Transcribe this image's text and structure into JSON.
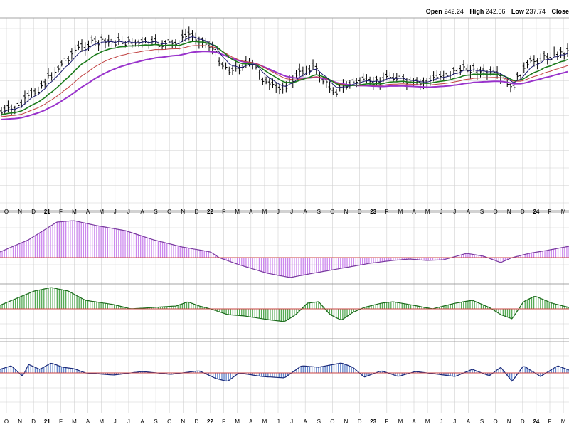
{
  "header": {
    "open_label": "Open",
    "open_value": "242.24",
    "high_label": "High",
    "high_value": "242.66",
    "low_label": "Low",
    "low_value": "237.74",
    "close_label": "Close"
  },
  "colors": {
    "grid": "#d0d0d0",
    "bars": "#000000",
    "ema_fast": "#1a1a6e",
    "ema_green": "#1a7a1a",
    "ema_red": "#c04040",
    "ema_purple": "#9933cc",
    "hist1_fill": "#cc88ee",
    "hist1_stroke": "#7a3aa0",
    "hist2_fill": "#55aa55",
    "hist2_stroke": "#1a6a1a",
    "hist3_fill": "#6688cc",
    "hist3_stroke": "#1a2a7a",
    "zero_line": "#cc4444"
  },
  "chart_data": {
    "type": "line",
    "x_ticks": [
      "O",
      "N",
      "D",
      "21",
      "F",
      "M",
      "A",
      "M",
      "J",
      "J",
      "A",
      "S",
      "O",
      "N",
      "D",
      "22",
      "F",
      "M",
      "A",
      "M",
      "J",
      "J",
      "A",
      "S",
      "O",
      "N",
      "D",
      "23",
      "F",
      "M",
      "A",
      "M",
      "J",
      "J",
      "A",
      "S",
      "O",
      "N",
      "D",
      "24",
      "F",
      "M"
    ],
    "price_keys": [
      [
        0,
        158
      ],
      [
        0.03,
        150
      ],
      [
        0.07,
        120
      ],
      [
        0.1,
        95
      ],
      [
        0.13,
        70
      ],
      [
        0.16,
        60
      ],
      [
        0.2,
        58
      ],
      [
        0.24,
        60
      ],
      [
        0.28,
        62
      ],
      [
        0.31,
        62
      ],
      [
        0.33,
        47
      ],
      [
        0.35,
        55
      ],
      [
        0.37,
        65
      ],
      [
        0.39,
        90
      ],
      [
        0.41,
        100
      ],
      [
        0.43,
        88
      ],
      [
        0.45,
        95
      ],
      [
        0.47,
        120
      ],
      [
        0.49,
        125
      ],
      [
        0.51,
        115
      ],
      [
        0.53,
        100
      ],
      [
        0.55,
        92
      ],
      [
        0.57,
        115
      ],
      [
        0.59,
        128
      ],
      [
        0.61,
        120
      ],
      [
        0.63,
        113
      ],
      [
        0.65,
        118
      ],
      [
        0.67,
        112
      ],
      [
        0.69,
        105
      ],
      [
        0.7,
        110
      ],
      [
        0.72,
        118
      ],
      [
        0.74,
        118
      ],
      [
        0.77,
        108
      ],
      [
        0.8,
        100
      ],
      [
        0.83,
        96
      ],
      [
        0.85,
        102
      ],
      [
        0.87,
        105
      ],
      [
        0.89,
        115
      ],
      [
        0.9,
        125
      ],
      [
        0.92,
        100
      ],
      [
        0.94,
        85
      ],
      [
        0.97,
        78
      ],
      [
        1,
        72
      ]
    ],
    "panels": [
      {
        "name": "hist1",
        "keys": [
          [
            0,
            -8
          ],
          [
            0.05,
            -25
          ],
          [
            0.1,
            -50
          ],
          [
            0.13,
            -52
          ],
          [
            0.17,
            -45
          ],
          [
            0.22,
            -38
          ],
          [
            0.27,
            -25
          ],
          [
            0.32,
            -15
          ],
          [
            0.37,
            -8
          ],
          [
            0.385,
            0
          ],
          [
            0.42,
            10
          ],
          [
            0.47,
            22
          ],
          [
            0.51,
            28
          ],
          [
            0.55,
            22
          ],
          [
            0.6,
            15
          ],
          [
            0.65,
            8
          ],
          [
            0.69,
            4
          ],
          [
            0.72,
            2
          ],
          [
            0.75,
            4
          ],
          [
            0.78,
            3
          ],
          [
            0.82,
            -6
          ],
          [
            0.85,
            -2
          ],
          [
            0.88,
            7
          ],
          [
            0.9,
            0
          ],
          [
            0.93,
            -6
          ],
          [
            0.96,
            -10
          ],
          [
            1,
            -16
          ]
        ]
      },
      {
        "name": "hist2",
        "keys": [
          [
            0,
            -5
          ],
          [
            0.03,
            -15
          ],
          [
            0.06,
            -25
          ],
          [
            0.09,
            -30
          ],
          [
            0.12,
            -25
          ],
          [
            0.15,
            -12
          ],
          [
            0.2,
            -6
          ],
          [
            0.23,
            0
          ],
          [
            0.27,
            -2
          ],
          [
            0.31,
            -4
          ],
          [
            0.33,
            -10
          ],
          [
            0.35,
            -4
          ],
          [
            0.37,
            0
          ],
          [
            0.4,
            8
          ],
          [
            0.43,
            10
          ],
          [
            0.47,
            15
          ],
          [
            0.5,
            18
          ],
          [
            0.52,
            8
          ],
          [
            0.54,
            -8
          ],
          [
            0.56,
            -10
          ],
          [
            0.58,
            8
          ],
          [
            0.6,
            16
          ],
          [
            0.62,
            5
          ],
          [
            0.64,
            -2
          ],
          [
            0.67,
            -8
          ],
          [
            0.69,
            -10
          ],
          [
            0.72,
            -6
          ],
          [
            0.76,
            0
          ],
          [
            0.8,
            -8
          ],
          [
            0.83,
            -12
          ],
          [
            0.86,
            -2
          ],
          [
            0.88,
            8
          ],
          [
            0.9,
            14
          ],
          [
            0.92,
            -10
          ],
          [
            0.94,
            -18
          ],
          [
            0.97,
            -8
          ],
          [
            1,
            -2
          ]
        ]
      },
      {
        "name": "hist3",
        "keys": [
          [
            0,
            -5
          ],
          [
            0.02,
            -10
          ],
          [
            0.04,
            5
          ],
          [
            0.05,
            -12
          ],
          [
            0.07,
            -5
          ],
          [
            0.09,
            -14
          ],
          [
            0.11,
            -8
          ],
          [
            0.13,
            -6
          ],
          [
            0.15,
            0
          ],
          [
            0.2,
            3
          ],
          [
            0.25,
            -2
          ],
          [
            0.3,
            2
          ],
          [
            0.35,
            -3
          ],
          [
            0.38,
            8
          ],
          [
            0.4,
            12
          ],
          [
            0.42,
            0
          ],
          [
            0.46,
            5
          ],
          [
            0.5,
            7
          ],
          [
            0.53,
            -10
          ],
          [
            0.56,
            -8
          ],
          [
            0.6,
            -14
          ],
          [
            0.62,
            -8
          ],
          [
            0.64,
            6
          ],
          [
            0.67,
            -3
          ],
          [
            0.7,
            5
          ],
          [
            0.73,
            -2
          ],
          [
            0.78,
            3
          ],
          [
            0.8,
            5
          ],
          [
            0.83,
            -5
          ],
          [
            0.86,
            4
          ],
          [
            0.88,
            -8
          ],
          [
            0.9,
            12
          ],
          [
            0.92,
            -10
          ],
          [
            0.95,
            5
          ],
          [
            0.98,
            -10
          ],
          [
            1,
            -4
          ]
        ]
      }
    ]
  }
}
